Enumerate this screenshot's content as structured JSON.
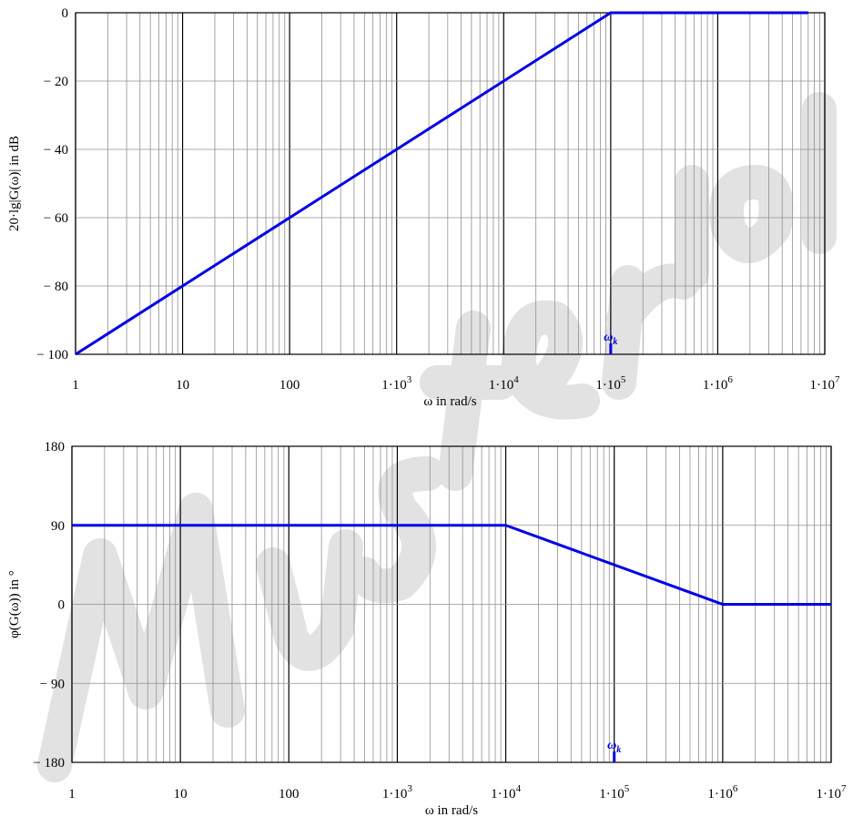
{
  "chart_data": [
    {
      "type": "line",
      "id": "magnitude",
      "xscale": "log",
      "xlim": [
        1,
        10000000
      ],
      "ylim": [
        -100,
        0
      ],
      "xlabel": "ω in rad/s",
      "ylabel": "20·lg|G(ω)| in dB",
      "xtick_labels": [
        "1",
        "10",
        "100",
        "1·10",
        "1·10",
        "1·10",
        "1·10",
        "1·10"
      ],
      "xtick_exponents": [
        "",
        "",
        "",
        "3",
        "4",
        "5",
        "6",
        "7"
      ],
      "ytick_labels": [
        "0",
        "− 20",
        "− 40",
        "− 60",
        "− 80",
        "− 100"
      ],
      "ytick_values": [
        0,
        -20,
        -40,
        -60,
        -80,
        -100
      ],
      "series": [
        {
          "x": [
            1,
            100000,
            7000000
          ],
          "y": [
            -100,
            0,
            0
          ]
        }
      ],
      "marker": {
        "label": "ω",
        "subscript": "k",
        "x": 100000
      }
    },
    {
      "type": "line",
      "id": "phase",
      "xscale": "log",
      "xlim": [
        1,
        10000000
      ],
      "ylim": [
        -180,
        180
      ],
      "xlabel": "ω in rad/s",
      "ylabel": "φ(G(ω)) in °",
      "xtick_labels": [
        "1",
        "10",
        "100",
        "1·10",
        "1·10",
        "1·10",
        "1·10",
        "1·10"
      ],
      "xtick_exponents": [
        "",
        "",
        "",
        "3",
        "4",
        "5",
        "6",
        "7"
      ],
      "ytick_labels": [
        "180",
        "90",
        "0",
        "− 90",
        "− 180"
      ],
      "ytick_values": [
        180,
        90,
        0,
        -90,
        -180
      ],
      "series": [
        {
          "x": [
            1,
            10000,
            1000000,
            10000000
          ],
          "y": [
            90,
            90,
            0,
            0
          ]
        }
      ],
      "marker": {
        "label": "ω",
        "subscript": "k",
        "x": 100000
      }
    }
  ],
  "colors": {
    "curve": "#0000e6",
    "major_grid": "#000000",
    "minor_grid": "#909090",
    "watermark": "#e2e2e2"
  },
  "watermark_text": "Musterlösung"
}
